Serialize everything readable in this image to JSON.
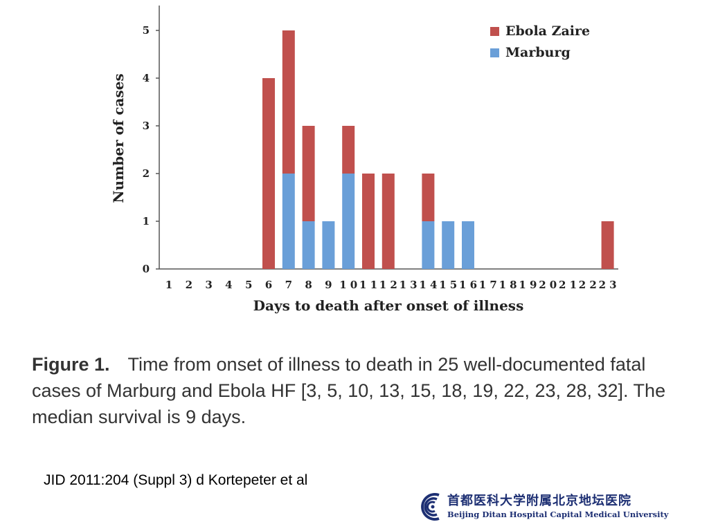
{
  "chart_data": {
    "type": "bar",
    "stacked": true,
    "categories": [
      "1",
      "2",
      "3",
      "4",
      "5",
      "6",
      "7",
      "8",
      "9",
      "10",
      "11",
      "12",
      "13",
      "14",
      "15",
      "16",
      "17",
      "18",
      "19",
      "20",
      "21",
      "22",
      "23"
    ],
    "series": [
      {
        "name": "Marburg",
        "color": "#6a9fd8",
        "values": [
          0,
          0,
          0,
          0,
          0,
          0,
          2,
          1,
          1,
          2,
          0,
          0,
          0,
          1,
          1,
          1,
          0,
          0,
          0,
          0,
          0,
          0,
          0
        ]
      },
      {
        "name": "Ebola Zaire",
        "color": "#c0504d",
        "values": [
          0,
          0,
          0,
          0,
          0,
          4,
          3,
          2,
          0,
          1,
          2,
          2,
          0,
          1,
          0,
          0,
          0,
          0,
          0,
          0,
          0,
          0,
          1
        ]
      }
    ],
    "legend_order": [
      "Ebola Zaire",
      "Marburg"
    ],
    "legend_position": "top-right",
    "xlabel": "Days to death after onset of illness",
    "ylabel": "Number of cases",
    "ylim": [
      0,
      5
    ],
    "yticks": [
      "0",
      "1",
      "2",
      "3",
      "4",
      "5"
    ],
    "grid": false
  },
  "caption": {
    "label": "Figure 1.",
    "text": "Time from onset of illness to death in 25 well-documented fatal cases of Marburg and Ebola HF [3, 5, 10, 13, 15, 18, 19, 22, 23, 28, 32]. The median survival is 9 days."
  },
  "citation": "JID 2011:204 (Suppl 3) d Kortepeter et al",
  "logo": {
    "name_cn": "首都医科大学附属北京地坛医院",
    "name_en": "Beijing Ditan Hospital Capital Medical University",
    "color": "#1d2f73"
  }
}
